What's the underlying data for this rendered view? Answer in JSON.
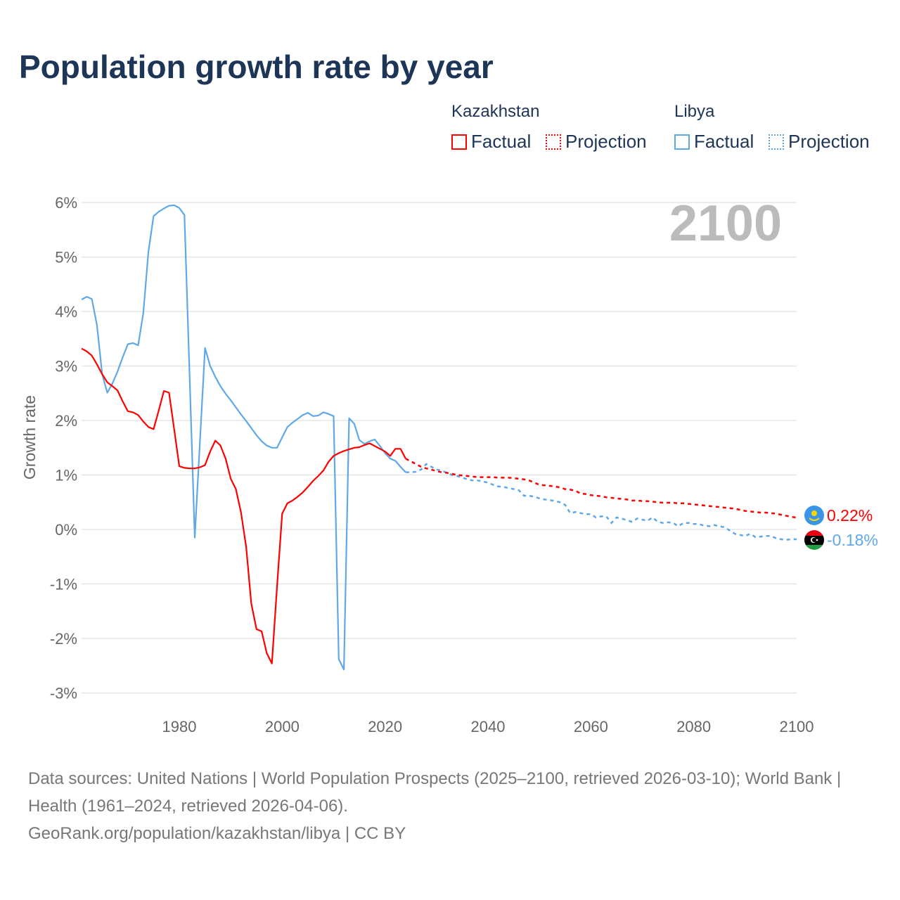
{
  "chart_data": {
    "type": "line",
    "title": "Population growth rate by year",
    "ylabel": "Growth rate",
    "xlabel": "",
    "xlim": [
      1961,
      2100
    ],
    "ylim": [
      -3,
      6
    ],
    "x_ticks": [
      "1980",
      "2000",
      "2020",
      "2040",
      "2060",
      "2080",
      "2100"
    ],
    "y_ticks": [
      "6%",
      "5%",
      "4%",
      "3%",
      "2%",
      "1%",
      "0%",
      "-1%",
      "-2%",
      "-3%"
    ],
    "year_label": "2100",
    "legend": {
      "groups": [
        {
          "country": "Kazakhstan",
          "factual": "Factual",
          "projection": "Projection"
        },
        {
          "country": "Libya",
          "factual": "Factual",
          "projection": "Projection"
        }
      ]
    },
    "series": [
      {
        "name": "Kazakhstan",
        "color": "#ff0000",
        "end_label": "0.22%",
        "factual_start": 1961,
        "factual": [
          3.32,
          3.27,
          3.19,
          3.03,
          2.85,
          2.7,
          2.63,
          2.55,
          2.35,
          2.17,
          2.15,
          2.1,
          1.98,
          1.88,
          1.84,
          2.18,
          2.54,
          2.51,
          1.84,
          1.16,
          1.13,
          1.12,
          1.12,
          1.14,
          1.18,
          1.43,
          1.63,
          1.54,
          1.3,
          0.93,
          0.74,
          0.31,
          -0.32,
          -1.36,
          -1.83,
          -1.87,
          -2.27,
          -2.46,
          -1.05,
          0.29,
          0.48,
          0.53,
          0.6,
          0.68,
          0.78,
          0.89,
          0.98,
          1.08,
          1.24,
          1.35,
          1.4,
          1.44,
          1.47,
          1.5,
          1.51,
          1.55,
          1.58,
          1.53,
          1.48,
          1.43,
          1.35,
          1.48,
          1.48,
          1.3
        ],
        "projection_start": 2024,
        "projection": [
          1.3,
          1.25,
          1.2,
          1.15,
          1.12,
          1.1,
          1.07,
          1.05,
          1.04,
          1.02,
          1.0,
          0.99,
          0.98,
          0.97,
          0.96,
          0.96,
          0.96,
          0.96,
          0.95,
          0.95,
          0.95,
          0.94,
          0.93,
          0.92,
          0.9,
          0.86,
          0.82,
          0.81,
          0.8,
          0.79,
          0.77,
          0.74,
          0.73,
          0.71,
          0.66,
          0.65,
          0.63,
          0.62,
          0.61,
          0.59,
          0.58,
          0.57,
          0.56,
          0.55,
          0.53,
          0.53,
          0.52,
          0.52,
          0.51,
          0.5,
          0.49,
          0.49,
          0.49,
          0.48,
          0.48,
          0.47,
          0.46,
          0.45,
          0.44,
          0.43,
          0.42,
          0.41,
          0.4,
          0.39,
          0.38,
          0.36,
          0.34,
          0.33,
          0.32,
          0.31,
          0.31,
          0.3,
          0.29,
          0.27,
          0.25,
          0.23,
          0.22
        ]
      },
      {
        "name": "Libya",
        "color": "#5fa8e8",
        "end_label": "-0.18%",
        "factual_start": 1961,
        "factual": [
          4.22,
          4.27,
          4.23,
          3.75,
          2.85,
          2.51,
          2.68,
          2.9,
          3.16,
          3.4,
          3.42,
          3.38,
          3.97,
          5.1,
          5.75,
          5.83,
          5.89,
          5.94,
          5.95,
          5.9,
          5.77,
          2.85,
          -0.15,
          1.6,
          3.33,
          3.0,
          2.8,
          2.63,
          2.49,
          2.37,
          2.24,
          2.11,
          1.99,
          1.86,
          1.73,
          1.62,
          1.54,
          1.5,
          1.5,
          1.69,
          1.88,
          1.96,
          2.03,
          2.1,
          2.14,
          2.08,
          2.09,
          2.15,
          2.12,
          2.08,
          -2.38,
          -2.57,
          2.04,
          1.94,
          1.64,
          1.57,
          1.62,
          1.65,
          1.53,
          1.4,
          1.3,
          1.26,
          1.15,
          1.05
        ],
        "projection_start": 2024,
        "projection": [
          1.05,
          1.05,
          1.06,
          1.1,
          1.2,
          1.15,
          1.1,
          1.08,
          1.04,
          1.0,
          0.98,
          0.95,
          0.92,
          0.9,
          0.9,
          0.88,
          0.86,
          0.82,
          0.79,
          0.78,
          0.76,
          0.74,
          0.72,
          0.62,
          0.62,
          0.6,
          0.57,
          0.55,
          0.54,
          0.52,
          0.5,
          0.45,
          0.3,
          0.32,
          0.3,
          0.28,
          0.28,
          0.22,
          0.24,
          0.24,
          0.12,
          0.22,
          0.2,
          0.17,
          0.14,
          0.2,
          0.18,
          0.16,
          0.22,
          0.14,
          0.12,
          0.13,
          0.12,
          0.06,
          0.12,
          0.12,
          0.1,
          0.1,
          0.07,
          0.06,
          0.08,
          0.06,
          0.04,
          -0.02,
          -0.08,
          -0.1,
          -0.12,
          -0.08,
          -0.14,
          -0.13,
          -0.12,
          -0.12,
          -0.16,
          -0.18,
          -0.19,
          -0.18,
          -0.18
        ]
      }
    ]
  },
  "footer": {
    "sources": "Data sources: United Nations | World Population Prospects (2025–2100, retrieved 2026-03-10); World Bank | Health (1961–2024, retrieved 2026-04-06).",
    "credit": "GeoRank.org/population/kazakhstan/libya | CC BY"
  }
}
